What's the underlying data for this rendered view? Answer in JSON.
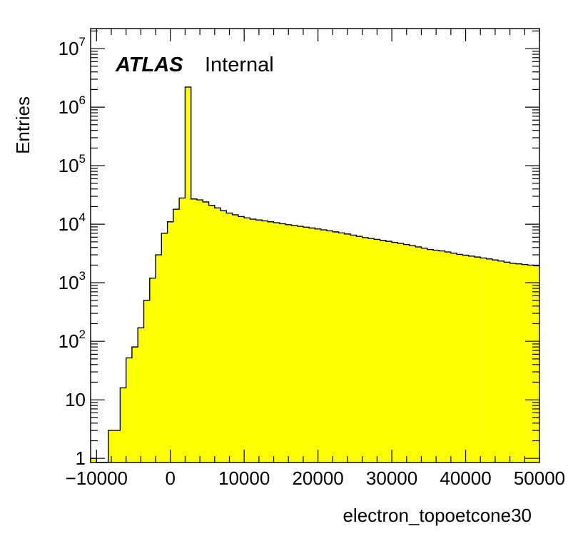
{
  "chart_data": {
    "type": "histogram",
    "xlabel": "electron_topoetcone30",
    "ylabel": "Entries",
    "label_bold": "ATLAS",
    "label_text": "Internal",
    "fill_color": "#ffff00",
    "line_color": "#000000",
    "xlim": [
      -10800,
      50000
    ],
    "ylim": [
      0.85,
      22000000
    ],
    "ylog": true,
    "bin_width": 800,
    "bin_start": -10800,
    "x_ticks": [
      {
        "value": -10000,
        "label": "−10000"
      },
      {
        "value": 0,
        "label": "0"
      },
      {
        "value": 10000,
        "label": "10000"
      },
      {
        "value": 20000,
        "label": "20000"
      },
      {
        "value": 30000,
        "label": "30000"
      },
      {
        "value": 40000,
        "label": "40000"
      },
      {
        "value": 50000,
        "label": "50000"
      }
    ],
    "y_ticks": [
      {
        "value": 1,
        "base": "1",
        "exp": ""
      },
      {
        "value": 10,
        "base": "10",
        "exp": ""
      },
      {
        "value": 100,
        "base": "10",
        "exp": "2"
      },
      {
        "value": 1000,
        "base": "10",
        "exp": "3"
      },
      {
        "value": 10000,
        "base": "10",
        "exp": "4"
      },
      {
        "value": 100000,
        "base": "10",
        "exp": "5"
      },
      {
        "value": 1000000,
        "base": "10",
        "exp": "6"
      },
      {
        "value": 10000000,
        "base": "10",
        "exp": "7"
      }
    ],
    "values": [
      1,
      0,
      0,
      3,
      3,
      16,
      52,
      80,
      170,
      500,
      1200,
      3000,
      7000,
      11000,
      18000,
      28000,
      2200000,
      27000,
      26000,
      24000,
      21000,
      19000,
      17000,
      15500,
      14500,
      13500,
      12800,
      12200,
      11800,
      11400,
      11000,
      10600,
      10200,
      9800,
      9500,
      9200,
      8900,
      8600,
      8300,
      8000,
      7700,
      7400,
      7100,
      6800,
      6500,
      6200,
      5900,
      5700,
      5500,
      5300,
      5100,
      4900,
      4700,
      4500,
      4300,
      4100,
      3900,
      3700,
      3600,
      3500,
      3350,
      3200,
      3050,
      2950,
      2850,
      2750,
      2650,
      2550,
      2450,
      2350,
      2250,
      2150,
      2100,
      2050,
      2000,
      1950
    ]
  }
}
